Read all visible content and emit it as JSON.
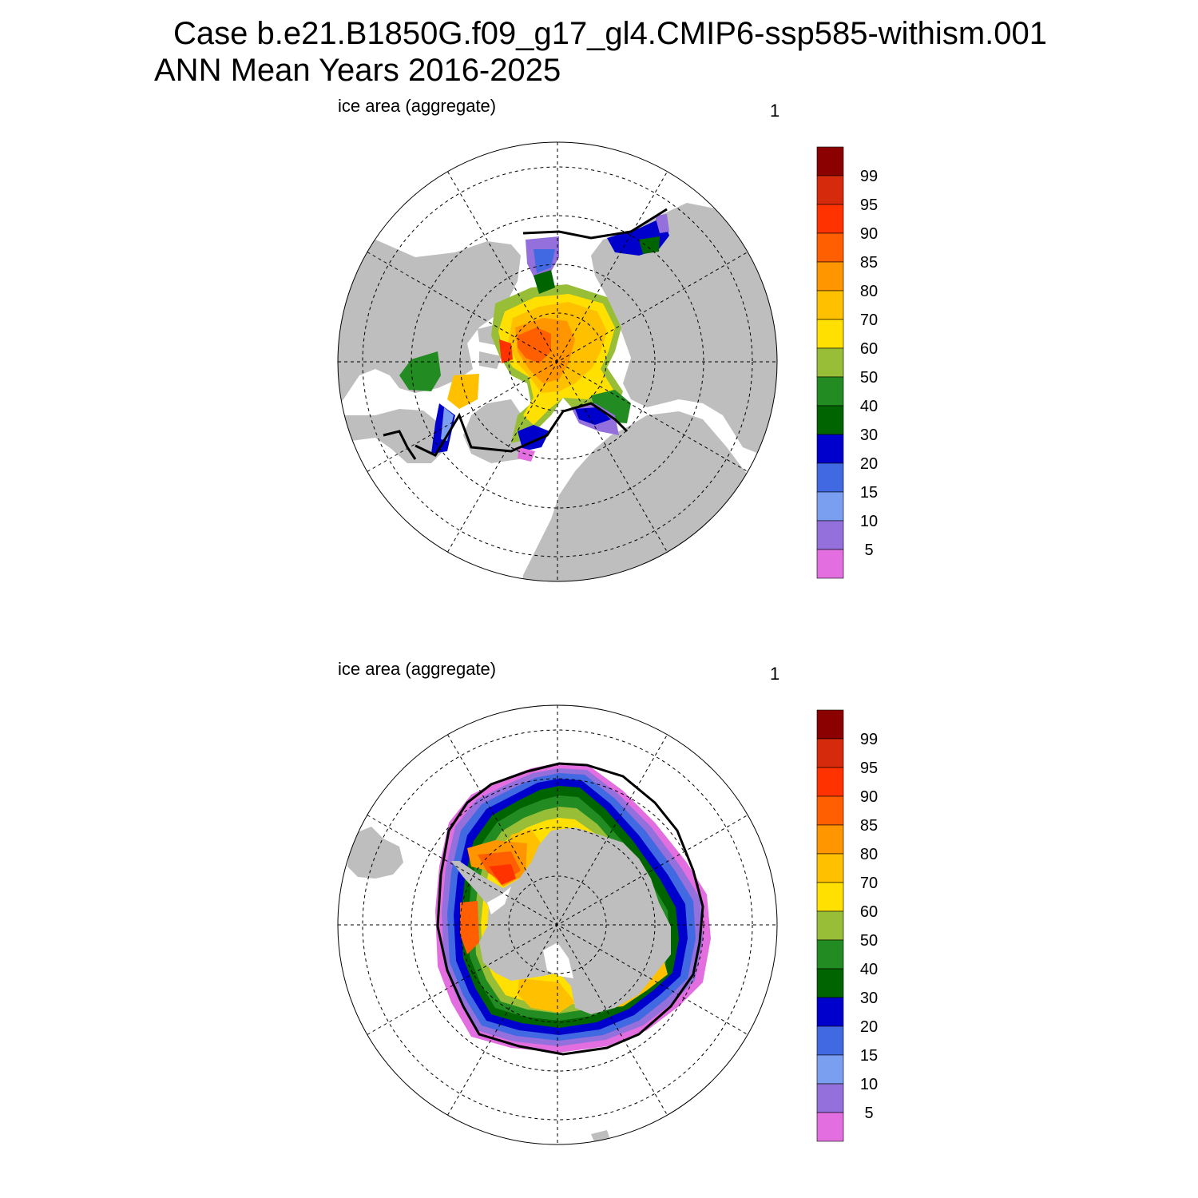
{
  "title": {
    "line1": "Case b.e21.B1850G.f09_g17_gl4.CMIP6-ssp585-withism.001",
    "line2": "ANN Mean    Years 2016-2025"
  },
  "panels": [
    {
      "name": "arctic",
      "left_label": "ice area  (aggregate)",
      "right_label": "1"
    },
    {
      "name": "antarctic",
      "left_label": "ice area  (aggregate)",
      "right_label": "1"
    }
  ],
  "colorbar": {
    "labels": [
      "99",
      "95",
      "90",
      "85",
      "80",
      "70",
      "60",
      "50",
      "40",
      "30",
      "20",
      "15",
      "10",
      "5"
    ],
    "colors": [
      "#8b0000",
      "#d62a0c",
      "#ff3200",
      "#ff5f00",
      "#ff9600",
      "#ffc000",
      "#ffe000",
      "#97be36",
      "#228b22",
      "#006400",
      "#0000cd",
      "#4169e1",
      "#7b9ff0",
      "#9370db",
      "#e36ee0"
    ]
  },
  "colors": {
    "land": "#bebebe",
    "ocean": "#ffffff",
    "obs_edge": "#000000"
  }
}
